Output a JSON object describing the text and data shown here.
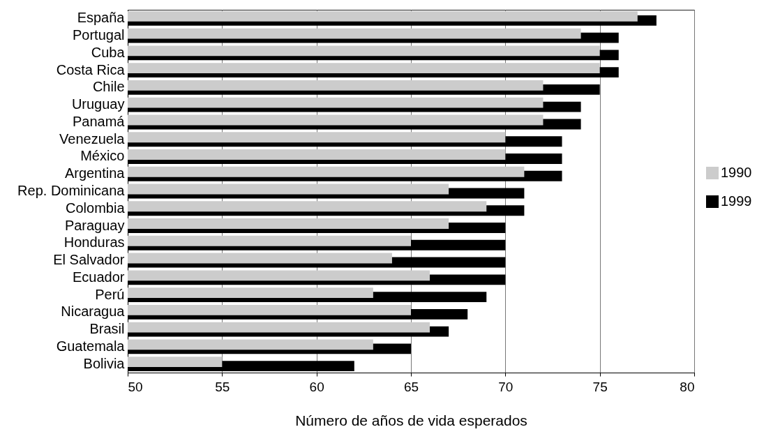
{
  "chart_data": {
    "type": "bar",
    "orientation": "horizontal",
    "xlabel": "Número de años de vida esperados",
    "categories": [
      "España",
      "Portugal",
      "Cuba",
      "Costa Rica",
      "Chile",
      "Uruguay",
      "Panamá",
      "Venezuela",
      "México",
      "Argentina",
      "Rep. Dominicana",
      "Colombia",
      "Paraguay",
      "Honduras",
      "El Salvador",
      "Ecuador",
      "Perú",
      "Nicaragua",
      "Brasil",
      "Guatemala",
      "Bolivia"
    ],
    "series": [
      {
        "name": "1990",
        "color": "#cccccc",
        "values": [
          77,
          74,
          75,
          75,
          72,
          72,
          72,
          70,
          70,
          71,
          67,
          69,
          67,
          65,
          64,
          66,
          63,
          65,
          66,
          63,
          55
        ]
      },
      {
        "name": "1999",
        "color": "#000000",
        "values": [
          78,
          76,
          76,
          76,
          75,
          74,
          74,
          73,
          73,
          73,
          71,
          71,
          70,
          70,
          70,
          70,
          69,
          68,
          67,
          65,
          62
        ]
      }
    ],
    "xlim": [
      50,
      80
    ],
    "xticks": [
      50,
      55,
      60,
      65,
      70,
      75,
      80
    ],
    "grid": "x",
    "legend": "right"
  }
}
